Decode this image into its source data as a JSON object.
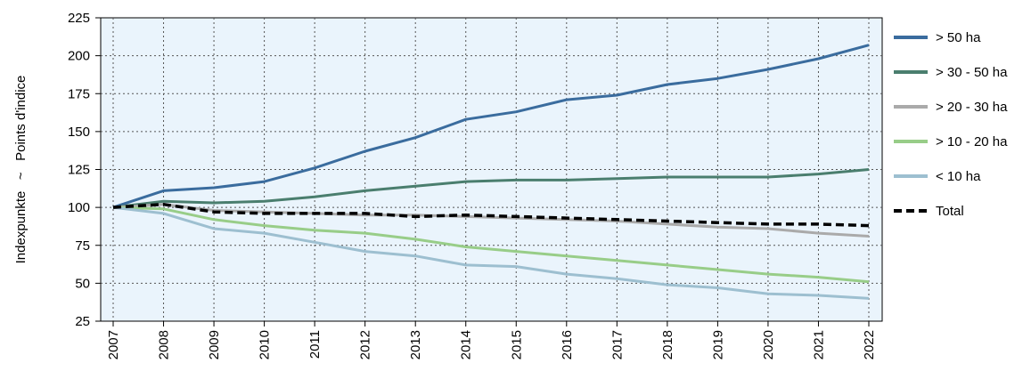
{
  "chart_data": {
    "type": "line",
    "title": "",
    "ylabel": "Indexpunkte   ~   Points d'indice",
    "xlabel": "",
    "ylim": [
      25,
      225
    ],
    "yticks": [
      25,
      50,
      75,
      100,
      125,
      150,
      175,
      200,
      225
    ],
    "categories": [
      "2007",
      "2008",
      "2009",
      "2010",
      "2011",
      "2012",
      "2013",
      "2014",
      "2015",
      "2016",
      "2017",
      "2018",
      "2019",
      "2020",
      "2021",
      "2022"
    ],
    "grid": true,
    "legend_position": "right",
    "colors": {
      "plot_background": "#eaf4fc",
      "grid": "#555555"
    },
    "series": [
      {
        "name": "> 50 ha",
        "color": "#3a6c9e",
        "dash": "solid",
        "values": [
          100,
          111,
          113,
          117,
          126,
          137,
          146,
          158,
          163,
          171,
          174,
          181,
          185,
          191,
          198,
          207
        ]
      },
      {
        "name": "> 30 - 50 ha",
        "color": "#4a7e6e",
        "dash": "solid",
        "values": [
          100,
          104,
          103,
          104,
          107,
          111,
          114,
          117,
          118,
          118,
          119,
          120,
          120,
          120,
          122,
          125
        ]
      },
      {
        "name": "> 20 - 30 ha",
        "color": "#aaaaaa",
        "dash": "solid",
        "values": [
          100,
          102,
          98,
          97,
          96,
          95,
          95,
          94,
          93,
          92,
          91,
          89,
          87,
          86,
          83,
          81
        ]
      },
      {
        "name": "> 10 - 20 ha",
        "color": "#98cd88",
        "dash": "solid",
        "values": [
          100,
          99,
          92,
          88,
          85,
          83,
          79,
          74,
          71,
          68,
          65,
          62,
          59,
          56,
          54,
          51
        ]
      },
      {
        "name": "< 10 ha",
        "color": "#9dbfd0",
        "dash": "solid",
        "values": [
          100,
          96,
          86,
          83,
          77,
          71,
          68,
          62,
          61,
          56,
          53,
          49,
          47,
          43,
          42,
          40
        ]
      },
      {
        "name": "Total",
        "color": "#000000",
        "dash": "dashed",
        "values": [
          100,
          102,
          97,
          96,
          96,
          96,
          94,
          95,
          94,
          93,
          92,
          91,
          90,
          89,
          89,
          88
        ]
      }
    ]
  }
}
